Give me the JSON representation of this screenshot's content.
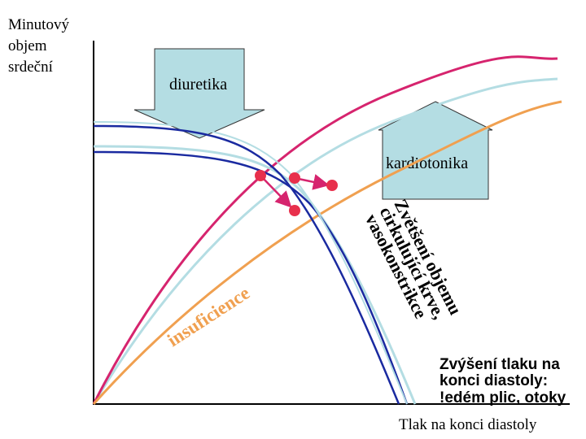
{
  "axes": {
    "y_label": [
      "Minutový",
      "objem",
      "srdeční"
    ],
    "x_label": "Tlak na konci diastoly"
  },
  "arrows": {
    "down": "diuretika",
    "up": "kardiotonika"
  },
  "annotations": {
    "volume": [
      "Zvětšení objemu",
      "cirkulující krve,",
      "vasokonstrikce"
    ],
    "failure": "insuficience",
    "consequence": [
      "Zvýšení tlaku na",
      "konci diastoly:",
      "!edém plic, otoky"
    ]
  }
}
